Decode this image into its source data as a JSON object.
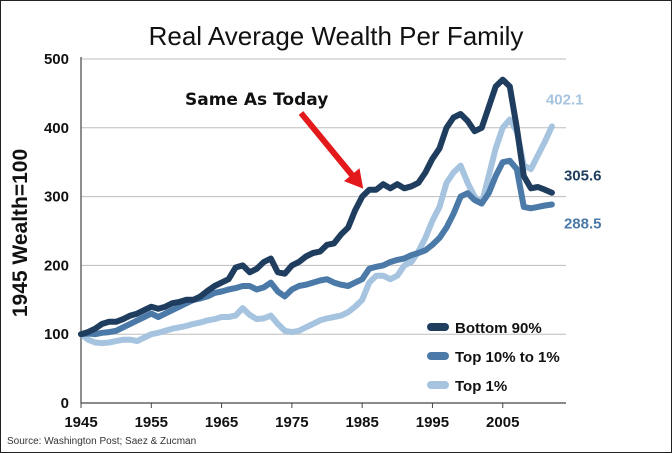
{
  "chart_data": {
    "type": "line",
    "title": "Real Average Wealth Per Family",
    "ylabel": "1945 Wealth=100",
    "xlabel": "",
    "xlim": [
      1945,
      2014
    ],
    "ylim": [
      0,
      500
    ],
    "xticks": [
      1945,
      1955,
      1965,
      1975,
      1985,
      1995,
      2005
    ],
    "yticks": [
      0,
      100,
      200,
      300,
      400,
      500
    ],
    "grid": "horizontal",
    "legend_position": "bottom-right",
    "series": [
      {
        "name": "Bottom 90%",
        "color": "#1f3d5e",
        "end_label": "305.6",
        "x": [
          1945,
          1946,
          1947,
          1948,
          1949,
          1950,
          1951,
          1952,
          1953,
          1954,
          1955,
          1956,
          1957,
          1958,
          1959,
          1960,
          1961,
          1962,
          1963,
          1964,
          1965,
          1966,
          1967,
          1968,
          1969,
          1970,
          1971,
          1972,
          1973,
          1974,
          1975,
          1976,
          1977,
          1978,
          1979,
          1980,
          1981,
          1982,
          1983,
          1984,
          1985,
          1986,
          1987,
          1988,
          1989,
          1990,
          1991,
          1992,
          1993,
          1994,
          1995,
          1996,
          1997,
          1998,
          1999,
          2000,
          2001,
          2002,
          2003,
          2004,
          2005,
          2006,
          2007,
          2008,
          2009,
          2010,
          2011,
          2012
        ],
        "y": [
          100,
          103,
          108,
          115,
          118,
          118,
          122,
          127,
          130,
          135,
          140,
          137,
          140,
          145,
          147,
          150,
          150,
          155,
          163,
          170,
          175,
          180,
          197,
          200,
          190,
          195,
          205,
          210,
          190,
          188,
          200,
          205,
          213,
          218,
          220,
          230,
          232,
          245,
          255,
          280,
          300,
          310,
          310,
          318,
          312,
          318,
          312,
          315,
          320,
          335,
          355,
          370,
          400,
          415,
          420,
          410,
          395,
          400,
          430,
          460,
          470,
          460,
          400,
          330,
          312,
          314,
          310,
          305.6
        ]
      },
      {
        "name": "Top 10% to 1%",
        "color": "#4b7aa8",
        "end_label": "288.5",
        "x": [
          1945,
          1946,
          1947,
          1948,
          1949,
          1950,
          1951,
          1952,
          1953,
          1954,
          1955,
          1956,
          1957,
          1958,
          1959,
          1960,
          1961,
          1962,
          1963,
          1964,
          1965,
          1966,
          1967,
          1968,
          1969,
          1970,
          1971,
          1972,
          1973,
          1974,
          1975,
          1976,
          1977,
          1978,
          1979,
          1980,
          1981,
          1982,
          1983,
          1984,
          1985,
          1986,
          1987,
          1988,
          1989,
          1990,
          1991,
          1992,
          1993,
          1994,
          1995,
          1996,
          1997,
          1998,
          1999,
          2000,
          2001,
          2002,
          2003,
          2004,
          2005,
          2006,
          2007,
          2008,
          2009,
          2010,
          2011,
          2012
        ],
        "y": [
          100,
          101,
          100,
          102,
          103,
          105,
          110,
          115,
          120,
          125,
          130,
          125,
          130,
          135,
          140,
          145,
          150,
          152,
          155,
          160,
          162,
          165,
          167,
          170,
          170,
          165,
          168,
          175,
          162,
          155,
          165,
          170,
          172,
          175,
          178,
          180,
          175,
          172,
          170,
          175,
          180,
          195,
          198,
          200,
          205,
          208,
          210,
          215,
          218,
          222,
          230,
          240,
          255,
          275,
          300,
          305,
          295,
          290,
          305,
          330,
          350,
          352,
          340,
          285,
          283,
          285,
          287,
          288.5
        ]
      },
      {
        "name": "Top 1%",
        "color": "#a6c4e0",
        "end_label": "402.1",
        "x": [
          1945,
          1946,
          1947,
          1948,
          1949,
          1950,
          1951,
          1952,
          1953,
          1954,
          1955,
          1956,
          1957,
          1958,
          1959,
          1960,
          1961,
          1962,
          1963,
          1964,
          1965,
          1966,
          1967,
          1968,
          1969,
          1970,
          1971,
          1972,
          1973,
          1974,
          1975,
          1976,
          1977,
          1978,
          1979,
          1980,
          1981,
          1982,
          1983,
          1984,
          1985,
          1986,
          1987,
          1988,
          1989,
          1990,
          1991,
          1992,
          1993,
          1994,
          1995,
          1996,
          1997,
          1998,
          1999,
          2000,
          2001,
          2002,
          2003,
          2004,
          2005,
          2006,
          2007,
          2008,
          2009,
          2010,
          2011,
          2012
        ],
        "y": [
          100,
          92,
          88,
          87,
          88,
          90,
          92,
          92,
          90,
          95,
          100,
          102,
          105,
          108,
          110,
          112,
          115,
          117,
          120,
          122,
          125,
          125,
          127,
          138,
          128,
          122,
          123,
          127,
          115,
          105,
          103,
          105,
          110,
          115,
          120,
          123,
          125,
          127,
          132,
          140,
          150,
          175,
          185,
          185,
          180,
          185,
          200,
          205,
          220,
          240,
          265,
          285,
          320,
          335,
          345,
          320,
          300,
          290,
          330,
          370,
          400,
          412,
          395,
          345,
          340,
          360,
          380,
          402.1
        ]
      }
    ],
    "annotation": {
      "text": "Same As Today",
      "arrow_to": {
        "x": 1986,
        "y": 300
      }
    }
  },
  "source": "Source: Washington Post; Saez & Zucman"
}
